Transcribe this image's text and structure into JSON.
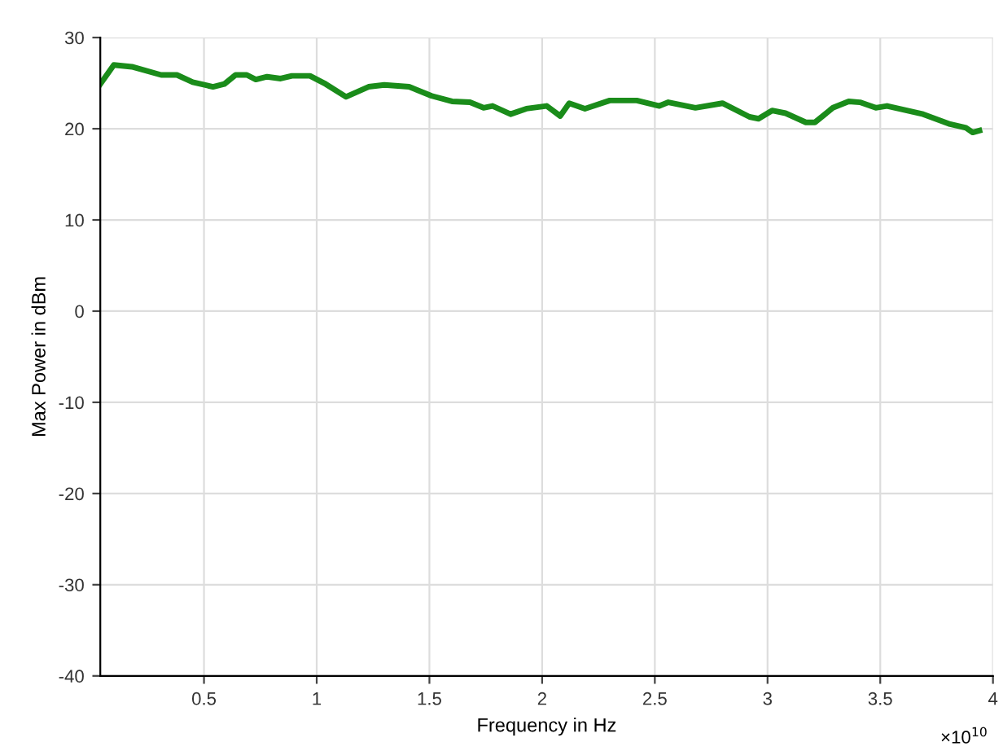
{
  "chart_data": {
    "type": "line",
    "xlabel": "Frequency in Hz",
    "ylabel": "Max Power in dBm",
    "annotations": [
      "×10$^{10}$"
    ],
    "xlim": [
      0.04,
      4
    ],
    "xticks": [
      0.5,
      1,
      1.5,
      2,
      2.5,
      3,
      3.5,
      4
    ],
    "ylim": [
      -40,
      30
    ],
    "yticks": [
      -40,
      -30,
      -20,
      -10,
      0,
      10,
      20,
      30
    ],
    "grid": true,
    "marker": "none",
    "line_style": "solid",
    "series": [
      {
        "color": "#1a8c1a",
        "x": [
          0.04,
          0.1,
          0.18,
          0.31,
          0.38,
          0.45,
          0.54,
          0.59,
          0.64,
          0.69,
          0.73,
          0.78,
          0.84,
          0.89,
          0.97,
          1.04,
          1.13,
          1.23,
          1.3,
          1.41,
          1.51,
          1.6,
          1.68,
          1.74,
          1.78,
          1.86,
          1.93,
          2.02,
          2.08,
          2.12,
          2.19,
          2.3,
          2.42,
          2.52,
          2.56,
          2.68,
          2.8,
          2.92,
          2.96,
          3.02,
          3.08,
          3.17,
          3.21,
          3.29,
          3.36,
          3.41,
          3.48,
          3.53,
          3.69,
          3.81,
          3.88,
          3.91,
          3.94
        ],
        "values": [
          24.9,
          27.0,
          26.8,
          25.9,
          25.9,
          25.1,
          24.6,
          24.9,
          25.9,
          25.9,
          25.4,
          25.7,
          25.5,
          25.8,
          25.8,
          24.9,
          23.5,
          24.6,
          24.8,
          24.6,
          23.6,
          23.0,
          22.9,
          22.3,
          22.5,
          21.6,
          22.2,
          22.5,
          21.4,
          22.8,
          22.2,
          23.1,
          23.1,
          22.5,
          22.9,
          22.3,
          22.8,
          21.3,
          21.1,
          22.0,
          21.7,
          20.7,
          20.7,
          22.3,
          23.0,
          22.9,
          22.3,
          22.5,
          21.6,
          20.5,
          20.1,
          19.6,
          19.8
        ]
      }
    ]
  }
}
